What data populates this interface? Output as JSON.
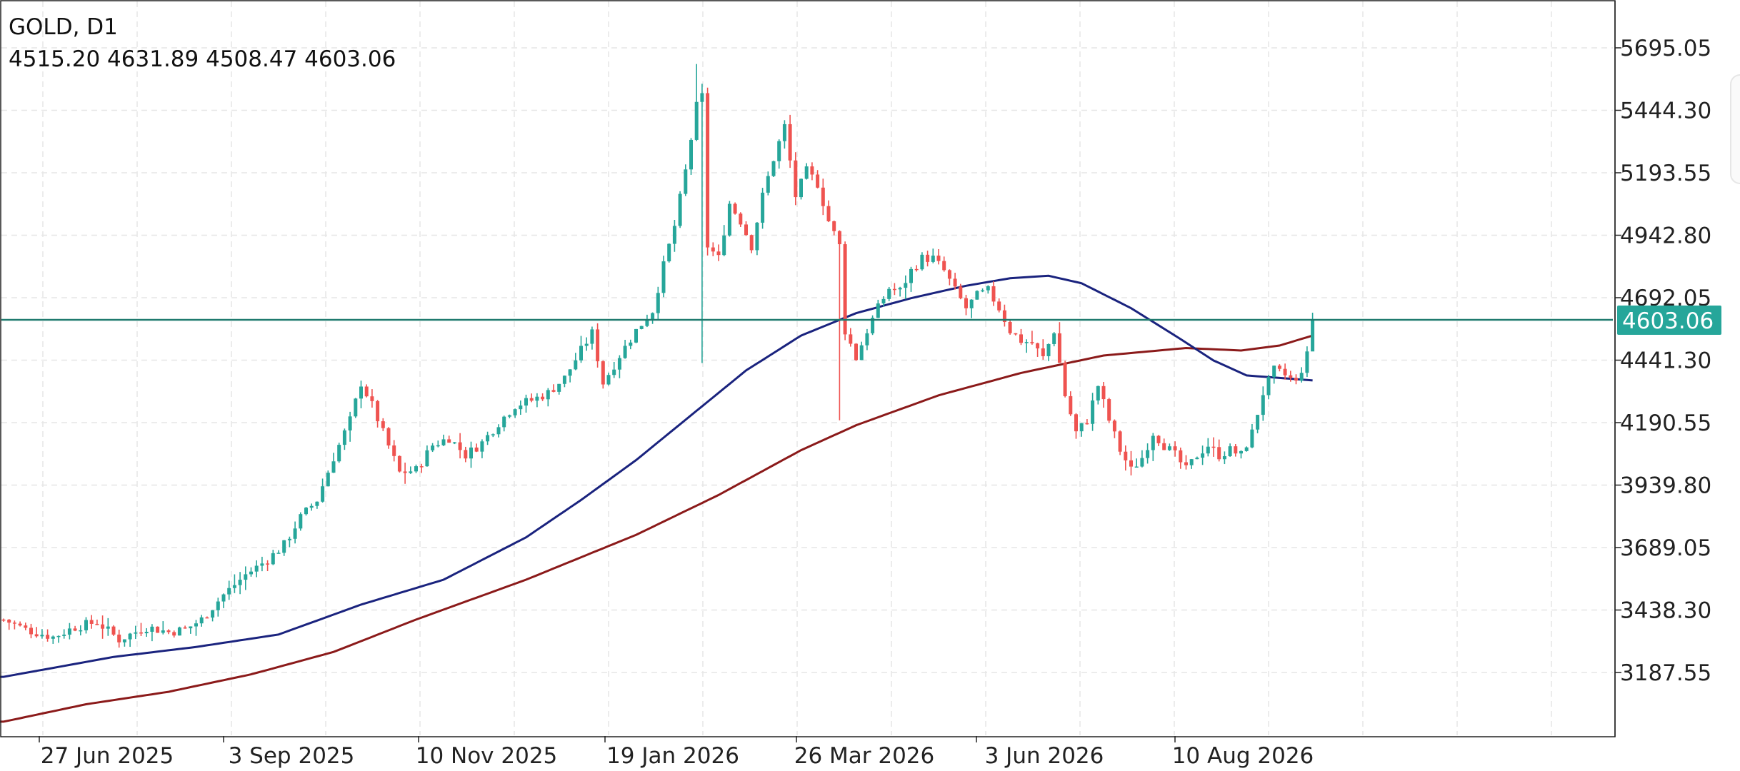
{
  "header": {
    "symbol_title": "GOLD, D1",
    "ohlc": "4515.20 4631.89 4508.47 4603.06"
  },
  "current_price": {
    "label": "4603.06",
    "value": 4603.06,
    "color": "#26a69a",
    "line_color": "#1f7a6e"
  },
  "colors": {
    "up": "#26a69a",
    "down": "#ef5350",
    "ma_fast": "#1a237e",
    "ma_slow": "#8b1a1a",
    "grid": "#e6e6e6",
    "text": "#222222"
  },
  "chart_data": {
    "type": "candlestick",
    "timeframe": "D1",
    "symbol": "GOLD",
    "xlabel": "",
    "ylabel": "",
    "ylim": [
      3040,
      5800
    ],
    "y_ticks": [
      "5695.05",
      "5444.30",
      "5193.55",
      "4942.80",
      "4692.05",
      "4441.30",
      "4190.55",
      "3939.80",
      "3689.05",
      "3438.30",
      "3187.55"
    ],
    "x_ticks": [
      "27 Jun 2025",
      "3 Sep 2025",
      "10 Nov 2025",
      "19 Jan 2026",
      "26 Mar 2026",
      "3 Jun 2026",
      "10 Aug 2026"
    ],
    "grid": true,
    "price_anchor": [
      [
        0,
        3400
      ],
      [
        4,
        3360
      ],
      [
        9,
        3330
      ],
      [
        13,
        3370
      ],
      [
        17,
        3390
      ],
      [
        21,
        3320
      ],
      [
        26,
        3370
      ],
      [
        30,
        3350
      ],
      [
        33,
        3360
      ],
      [
        36,
        3400
      ],
      [
        40,
        3500
      ],
      [
        44,
        3580
      ],
      [
        48,
        3640
      ],
      [
        51,
        3700
      ],
      [
        54,
        3810
      ],
      [
        57,
        3880
      ],
      [
        60,
        4050
      ],
      [
        63,
        4200
      ],
      [
        65,
        4350
      ],
      [
        67,
        4260
      ],
      [
        69,
        4150
      ],
      [
        72,
        3990
      ],
      [
        75,
        4000
      ],
      [
        78,
        4100
      ],
      [
        81,
        4130
      ],
      [
        84,
        4060
      ],
      [
        87,
        4110
      ],
      [
        90,
        4190
      ],
      [
        93,
        4260
      ],
      [
        96,
        4280
      ],
      [
        99,
        4310
      ],
      [
        102,
        4370
      ],
      [
        105,
        4480
      ],
      [
        107,
        4550
      ],
      [
        109,
        4350
      ],
      [
        112,
        4460
      ],
      [
        115,
        4560
      ],
      [
        118,
        4640
      ],
      [
        120,
        4820
      ],
      [
        122,
        4980
      ],
      [
        124,
        5200
      ],
      [
        126,
        5460
      ],
      [
        127,
        5500
      ],
      [
        128,
        4900
      ],
      [
        130,
        4850
      ],
      [
        132,
        5070
      ],
      [
        134,
        5000
      ],
      [
        136,
        4900
      ],
      [
        138,
        5100
      ],
      [
        140,
        5250
      ],
      [
        142,
        5380
      ],
      [
        144,
        5100
      ],
      [
        146,
        5200
      ],
      [
        148,
        5150
      ],
      [
        150,
        5000
      ],
      [
        152,
        4900
      ],
      [
        153,
        4560
      ],
      [
        155,
        4450
      ],
      [
        157,
        4560
      ],
      [
        159,
        4650
      ],
      [
        161,
        4730
      ],
      [
        163,
        4720
      ],
      [
        165,
        4800
      ],
      [
        167,
        4850
      ],
      [
        169,
        4850
      ],
      [
        171,
        4800
      ],
      [
        173,
        4720
      ],
      [
        175,
        4650
      ],
      [
        177,
        4700
      ],
      [
        179,
        4720
      ],
      [
        181,
        4650
      ],
      [
        183,
        4560
      ],
      [
        185,
        4520
      ],
      [
        187,
        4510
      ],
      [
        189,
        4450
      ],
      [
        191,
        4560
      ],
      [
        193,
        4300
      ],
      [
        195,
        4150
      ],
      [
        197,
        4200
      ],
      [
        199,
        4340
      ],
      [
        201,
        4200
      ],
      [
        203,
        4080
      ],
      [
        205,
        4000
      ],
      [
        207,
        4050
      ],
      [
        209,
        4150
      ],
      [
        211,
        4100
      ],
      [
        213,
        4060
      ],
      [
        215,
        4000
      ],
      [
        217,
        4060
      ],
      [
        219,
        4100
      ],
      [
        221,
        4060
      ],
      [
        223,
        4080
      ],
      [
        225,
        4060
      ],
      [
        227,
        4150
      ],
      [
        229,
        4310
      ],
      [
        231,
        4400
      ],
      [
        233,
        4380
      ],
      [
        235,
        4350
      ],
      [
        237,
        4460
      ],
      [
        238,
        4603
      ]
    ],
    "ma_fast_anchor": [
      [
        0,
        3170
      ],
      [
        20,
        3250
      ],
      [
        35,
        3290
      ],
      [
        50,
        3340
      ],
      [
        65,
        3460
      ],
      [
        80,
        3560
      ],
      [
        95,
        3730
      ],
      [
        105,
        3880
      ],
      [
        115,
        4040
      ],
      [
        125,
        4220
      ],
      [
        135,
        4400
      ],
      [
        145,
        4540
      ],
      [
        155,
        4630
      ],
      [
        165,
        4690
      ],
      [
        175,
        4740
      ],
      [
        183,
        4770
      ],
      [
        190,
        4780
      ],
      [
        196,
        4750
      ],
      [
        205,
        4650
      ],
      [
        213,
        4540
      ],
      [
        220,
        4440
      ],
      [
        226,
        4380
      ],
      [
        232,
        4370
      ],
      [
        238,
        4360
      ]
    ],
    "ma_slow_anchor": [
      [
        0,
        2990
      ],
      [
        15,
        3060
      ],
      [
        30,
        3110
      ],
      [
        45,
        3180
      ],
      [
        60,
        3270
      ],
      [
        75,
        3400
      ],
      [
        95,
        3560
      ],
      [
        115,
        3740
      ],
      [
        130,
        3900
      ],
      [
        145,
        4080
      ],
      [
        155,
        4180
      ],
      [
        170,
        4300
      ],
      [
        185,
        4390
      ],
      [
        200,
        4460
      ],
      [
        215,
        4490
      ],
      [
        225,
        4480
      ],
      [
        232,
        4500
      ],
      [
        238,
        4540
      ]
    ]
  }
}
